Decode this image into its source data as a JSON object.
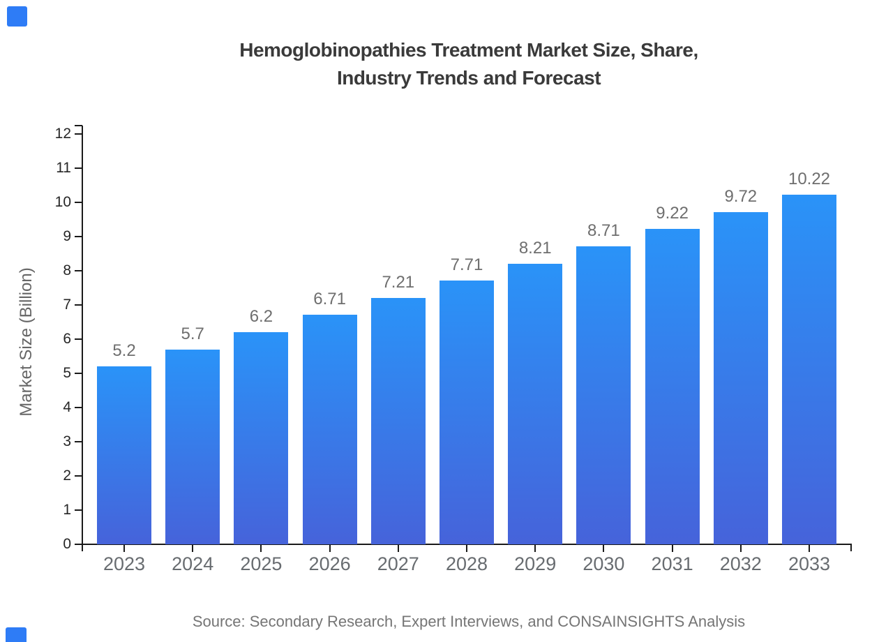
{
  "title": {
    "line1": "Hemoglobinopathies Treatment Market Size, Share,",
    "line2": "Industry Trends and Forecast"
  },
  "source": "Source: Secondary Research, Expert Interviews, and CONSAINSIGHTS Analysis",
  "chart_data": {
    "type": "bar",
    "title": "Hemoglobinopathies Treatment Market Size, Share, Industry Trends and Forecast",
    "categories": [
      "2023",
      "2024",
      "2025",
      "2026",
      "2027",
      "2028",
      "2029",
      "2030",
      "2031",
      "2032",
      "2033"
    ],
    "values": [
      5.2,
      5.7,
      6.2,
      6.71,
      7.21,
      7.71,
      8.21,
      8.71,
      9.22,
      9.72,
      10.22
    ],
    "value_labels": [
      "5.2",
      "5.7",
      "6.2",
      "6.71",
      "7.21",
      "7.71",
      "8.21",
      "8.71",
      "9.22",
      "9.72",
      "10.22"
    ],
    "xlabel": "",
    "ylabel": "Market Size (Billion)",
    "ylim": [
      0,
      12.2
    ],
    "yticks": [
      0,
      1,
      2,
      3,
      4,
      5,
      6,
      7,
      8,
      9,
      10,
      11,
      12
    ],
    "grid": false,
    "legend": "none"
  },
  "colors": {
    "bar_gradient_top": "#2a93f8",
    "bar_gradient_bottom": "#4663da",
    "axis": "#1a1a1a",
    "brand_accent": "#2e7cf6",
    "title_text": "#3a3a3a",
    "value_label_text": "#6e6e6e",
    "ytick_text": "#262626",
    "xtick_text": "#686c70",
    "source_text": "#757575"
  }
}
